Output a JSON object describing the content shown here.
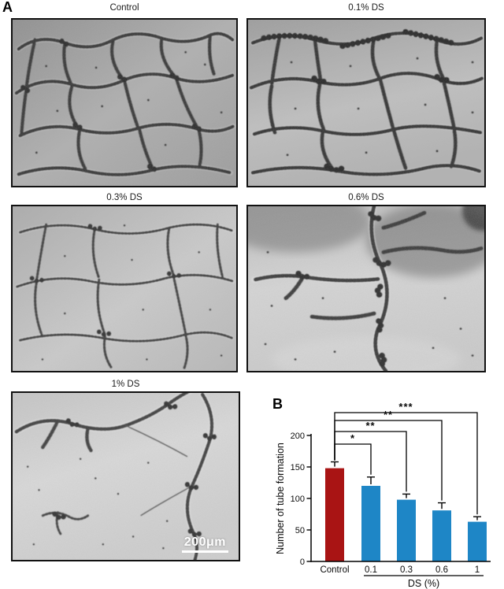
{
  "figure": {
    "panel_a_label": "A",
    "panel_b_label": "B"
  },
  "panel_a": {
    "images": [
      {
        "title": "Control"
      },
      {
        "title": "0.1% DS"
      },
      {
        "title": "0.3% DS"
      },
      {
        "title": "0.6% DS"
      },
      {
        "title": "1% DS",
        "scale_bar_label": "200μm"
      }
    ]
  },
  "chart_data": {
    "type": "bar",
    "title": "",
    "categories": [
      "Control",
      "0.1",
      "0.3",
      "0.6",
      "1"
    ],
    "values": [
      148,
      120,
      98,
      81,
      63
    ],
    "errors": [
      10,
      14,
      9,
      12,
      8
    ],
    "ylabel": "Number of tube formation",
    "xlabel": "DS (%)",
    "x_group_label": "DS (%)",
    "grouped_categories": [
      "0.1",
      "0.3",
      "0.6",
      "1"
    ],
    "ylim": [
      0,
      200
    ],
    "yticks": [
      0,
      50,
      100,
      150,
      200
    ],
    "bar_colors": [
      "#a91414",
      "#1e86c6",
      "#1e86c6",
      "#1e86c6",
      "#1e86c6"
    ],
    "axis_color": "#000000",
    "significance": [
      {
        "from": "Control",
        "to": "0.1",
        "label": "*"
      },
      {
        "from": "Control",
        "to": "0.3",
        "label": "**"
      },
      {
        "from": "Control",
        "to": "0.6",
        "label": "**"
      },
      {
        "from": "Control",
        "to": "1",
        "label": "***"
      }
    ],
    "legend": null,
    "grid": false
  }
}
